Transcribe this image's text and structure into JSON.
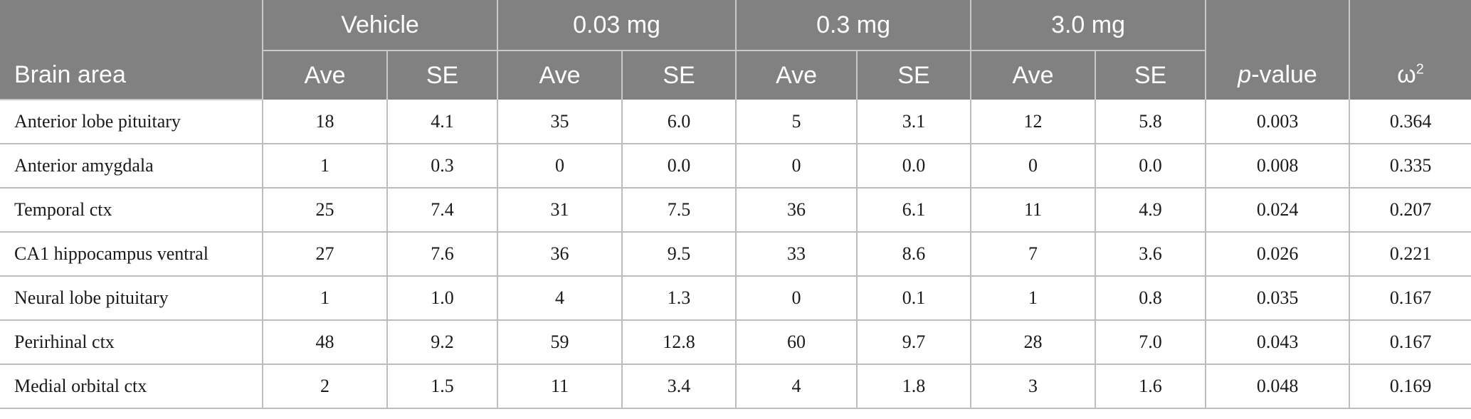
{
  "header": {
    "groups": [
      "Vehicle",
      "0.03 mg",
      "0.3 mg",
      "3.0 mg"
    ],
    "area_label": "Brain area",
    "ave_label": "Ave",
    "se_label": "SE",
    "p_italic": "p",
    "p_rest": "-value",
    "omega_label": "ω",
    "omega_sup": "2"
  },
  "rows": [
    {
      "area": "Anterior lobe pituitary",
      "v_ave": "18",
      "v_se": "4.1",
      "a_ave": "35",
      "a_se": "6.0",
      "b_ave": "5",
      "b_se": "3.1",
      "c_ave": "12",
      "c_se": "5.8",
      "p": "0.003",
      "w": "0.364"
    },
    {
      "area": "Anterior amygdala",
      "v_ave": "1",
      "v_se": "0.3",
      "a_ave": "0",
      "a_se": "0.0",
      "b_ave": "0",
      "b_se": "0.0",
      "c_ave": "0",
      "c_se": "0.0",
      "p": "0.008",
      "w": "0.335"
    },
    {
      "area": "Temporal ctx",
      "v_ave": "25",
      "v_se": "7.4",
      "a_ave": "31",
      "a_se": "7.5",
      "b_ave": "36",
      "b_se": "6.1",
      "c_ave": "11",
      "c_se": "4.9",
      "p": "0.024",
      "w": "0.207"
    },
    {
      "area": "CA1 hippocampus ventral",
      "v_ave": "27",
      "v_se": "7.6",
      "a_ave": "36",
      "a_se": "9.5",
      "b_ave": "33",
      "b_se": "8.6",
      "c_ave": "7",
      "c_se": "3.6",
      "p": "0.026",
      "w": "0.221"
    },
    {
      "area": "Neural lobe pituitary",
      "v_ave": "1",
      "v_se": "1.0",
      "a_ave": "4",
      "a_se": "1.3",
      "b_ave": "0",
      "b_se": "0.1",
      "c_ave": "1",
      "c_se": "0.8",
      "p": "0.035",
      "w": "0.167"
    },
    {
      "area": "Perirhinal ctx",
      "v_ave": "48",
      "v_se": "9.2",
      "a_ave": "59",
      "a_se": "12.8",
      "b_ave": "60",
      "b_se": "9.7",
      "c_ave": "28",
      "c_se": "7.0",
      "p": "0.043",
      "w": "0.167"
    },
    {
      "area": "Medial orbital ctx",
      "v_ave": "2",
      "v_se": "1.5",
      "a_ave": "11",
      "a_se": "3.4",
      "b_ave": "4",
      "b_se": "1.8",
      "c_ave": "3",
      "c_se": "1.6",
      "p": "0.048",
      "w": "0.169"
    }
  ]
}
